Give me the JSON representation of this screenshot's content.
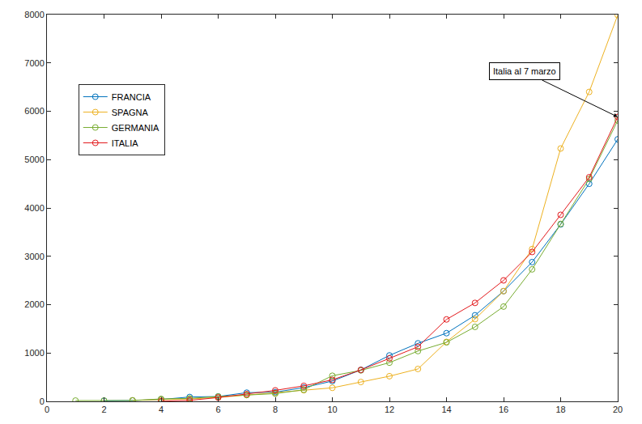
{
  "chart_data": {
    "type": "line",
    "x": [
      1,
      2,
      3,
      4,
      5,
      6,
      7,
      8,
      9,
      10,
      11,
      12,
      13,
      14,
      15,
      16,
      17,
      18,
      19,
      20
    ],
    "series": [
      {
        "name": "FRANCIA",
        "color": "#0072BD",
        "marker": "circle-open",
        "values": [
          null,
          12,
          18,
          38,
          90,
          100,
          180,
          190,
          285,
          420,
          650,
          950,
          1200,
          1410,
          1780,
          2280,
          2880,
          3660,
          4500,
          5420
        ]
      },
      {
        "name": "SPAGNA",
        "color": "#EDB120",
        "marker": "circle-open",
        "values": [
          null,
          null,
          20,
          30,
          50,
          80,
          130,
          170,
          230,
          280,
          400,
          520,
          670,
          1230,
          1700,
          2280,
          3150,
          5230,
          6400,
          7990
        ]
      },
      {
        "name": "GERMANIA",
        "color": "#77AC30",
        "marker": "circle-open",
        "values": [
          16,
          16,
          18,
          50,
          60,
          100,
          130,
          160,
          240,
          530,
          640,
          800,
          1040,
          1220,
          1540,
          1960,
          2730,
          3670,
          4600,
          5810
        ]
      },
      {
        "name": "ITALIA",
        "color": "#E3191C",
        "marker": "circle-open",
        "values": [
          null,
          null,
          null,
          3,
          20,
          79,
          150,
          227,
          320,
          445,
          650,
          888,
          1128,
          1694,
          2036,
          2502,
          3089,
          3858,
          4636,
          5883
        ]
      }
    ],
    "xlim": [
      0,
      20
    ],
    "xticks": [
      0,
      2,
      4,
      6,
      8,
      10,
      12,
      14,
      16,
      18,
      20
    ],
    "ylim": [
      0,
      8000
    ],
    "yticks": [
      0,
      1000,
      2000,
      3000,
      4000,
      5000,
      6000,
      7000,
      8000
    ],
    "grid": false,
    "legend": "upper left",
    "annotations": [
      {
        "text": "Italia al 7 marzo",
        "x": 20,
        "y": 5883
      }
    ]
  }
}
